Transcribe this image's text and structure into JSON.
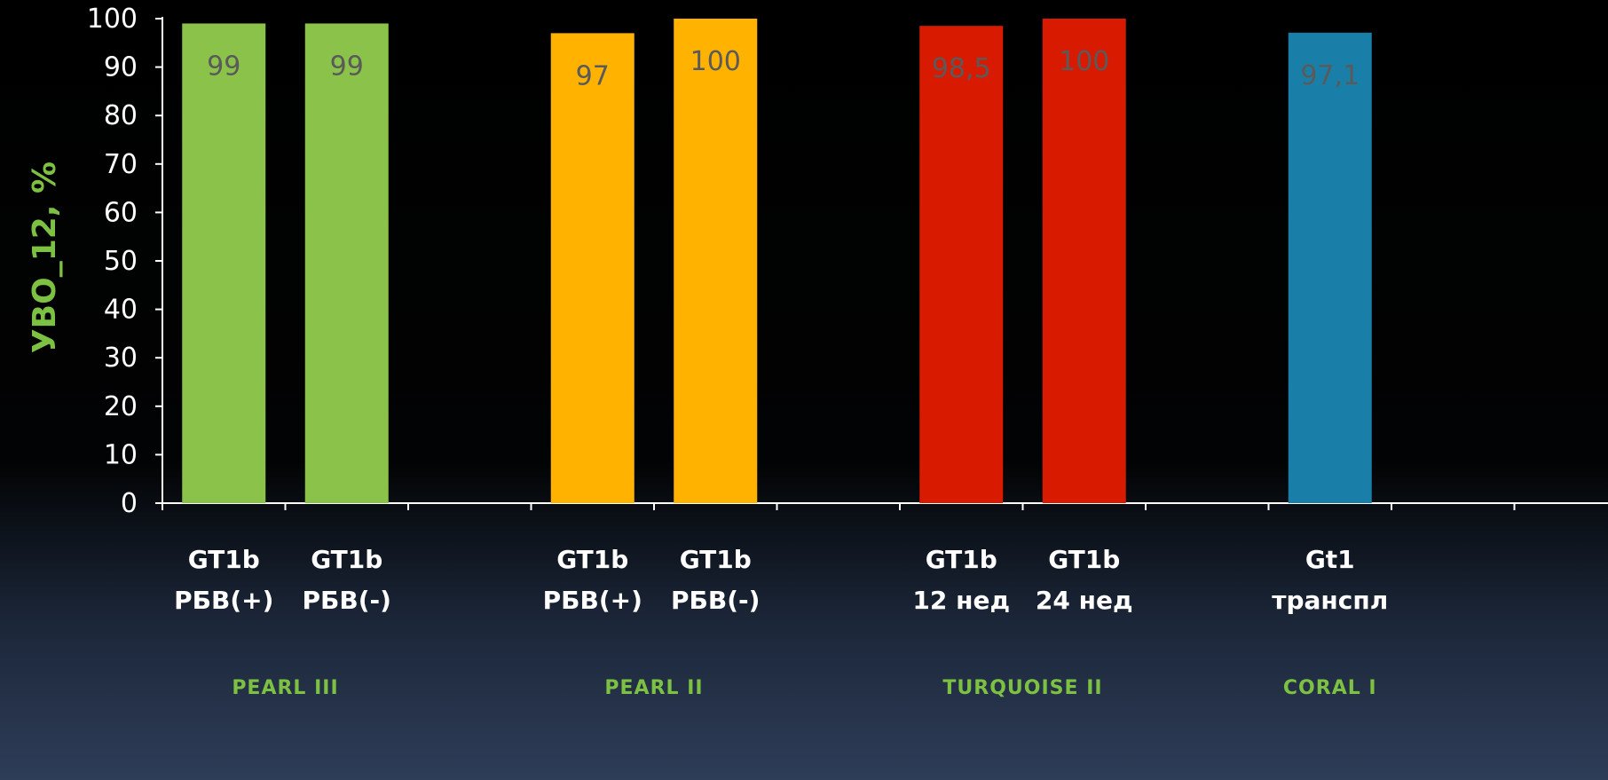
{
  "chart_data": {
    "type": "bar",
    "title": "",
    "ylabel": "УВО_12, %",
    "xlabel": "",
    "ylim": [
      0,
      100
    ],
    "yticks": [
      "0",
      "10",
      "20",
      "30",
      "40",
      "50",
      "60",
      "70",
      "80",
      "90",
      "100"
    ],
    "grid": false,
    "groups": [
      {
        "name": "PEARL III",
        "color": "#8bc34a",
        "bars": [
          {
            "label_line1": "GT1b",
            "label_line2": "РБВ(+)",
            "value": 99,
            "value_label": "99"
          },
          {
            "label_line1": "GT1b",
            "label_line2": "РБВ(-)",
            "value": 99,
            "value_label": "99"
          }
        ]
      },
      {
        "name": "PEARL II",
        "color": "#ffb300",
        "bars": [
          {
            "label_line1": "GT1b",
            "label_line2": "РБВ(+)",
            "value": 97,
            "value_label": "97"
          },
          {
            "label_line1": "GT1b",
            "label_line2": "РБВ(-)",
            "value": 100,
            "value_label": "100"
          }
        ]
      },
      {
        "name": "TURQUOISE II",
        "color": "#d81b00",
        "bars": [
          {
            "label_line1": "GT1b",
            "label_line2": "12 нед",
            "value": 98.5,
            "value_label": "98,5"
          },
          {
            "label_line1": "GT1b",
            "label_line2": "24 нед",
            "value": 100,
            "value_label": "100"
          }
        ]
      },
      {
        "name": "CORAL I",
        "color": "#1a7fa8",
        "bars": [
          {
            "label_line1": "Gt1",
            "label_line2": "транспл",
            "value": 97.1,
            "value_label": "97,1"
          }
        ]
      }
    ],
    "value_label_color": "#5a5a5a"
  }
}
